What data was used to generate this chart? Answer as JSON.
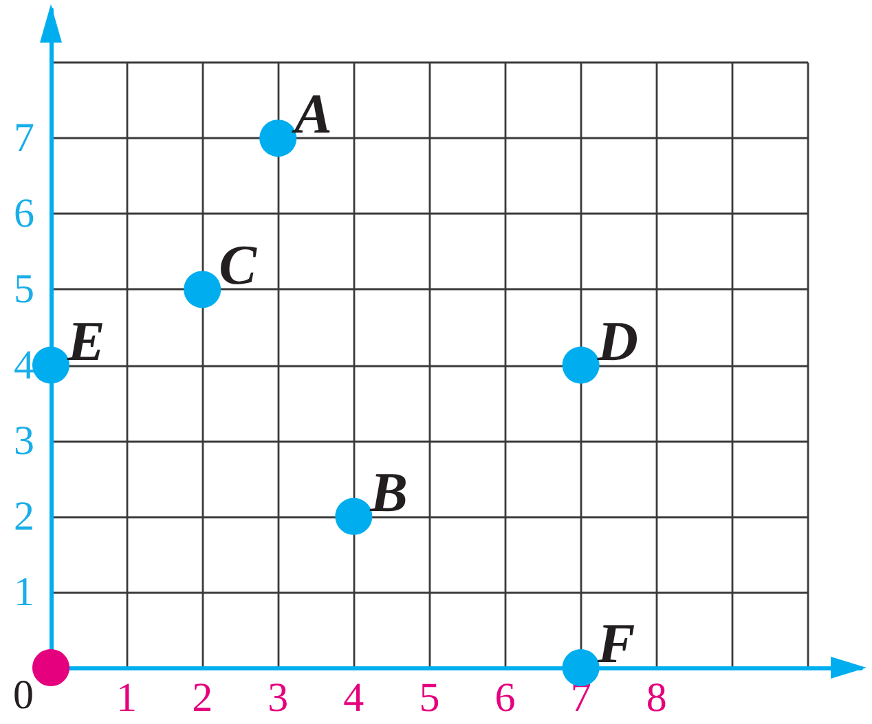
{
  "chart_data": {
    "type": "scatter",
    "series": [
      {
        "color": "#00aeef",
        "x": [
          3,
          4,
          2,
          7,
          0,
          7
        ],
        "values": [
          7,
          2,
          5,
          4,
          4,
          0
        ]
      },
      {
        "color": "#e5007e",
        "x": [
          0
        ],
        "values": [
          0
        ]
      }
    ],
    "xlim": [
      0,
      10.7
    ],
    "ylim": [
      0,
      8.7
    ],
    "xticks": [
      1,
      2,
      3,
      4,
      5,
      6,
      7,
      8,
      {
        "value": 9,
        "label": null
      },
      {
        "value": 10,
        "label": null
      }
    ],
    "yticks": [
      1,
      2,
      3,
      4,
      5,
      6,
      7,
      {
        "value": 8,
        "label": null
      }
    ],
    "grid": true,
    "marker": "circle",
    "annotations": [
      {
        "text": "A",
        "x": 3,
        "y": 7
      },
      {
        "text": "B",
        "x": 4,
        "y": 2
      },
      {
        "text": "C",
        "x": 2,
        "y": 5
      },
      {
        "text": "D",
        "x": 7,
        "y": 4
      },
      {
        "text": "E",
        "x": 0,
        "y": 4
      },
      {
        "text": "F",
        "x": 7,
        "y": 0
      },
      "0"
    ]
  }
}
